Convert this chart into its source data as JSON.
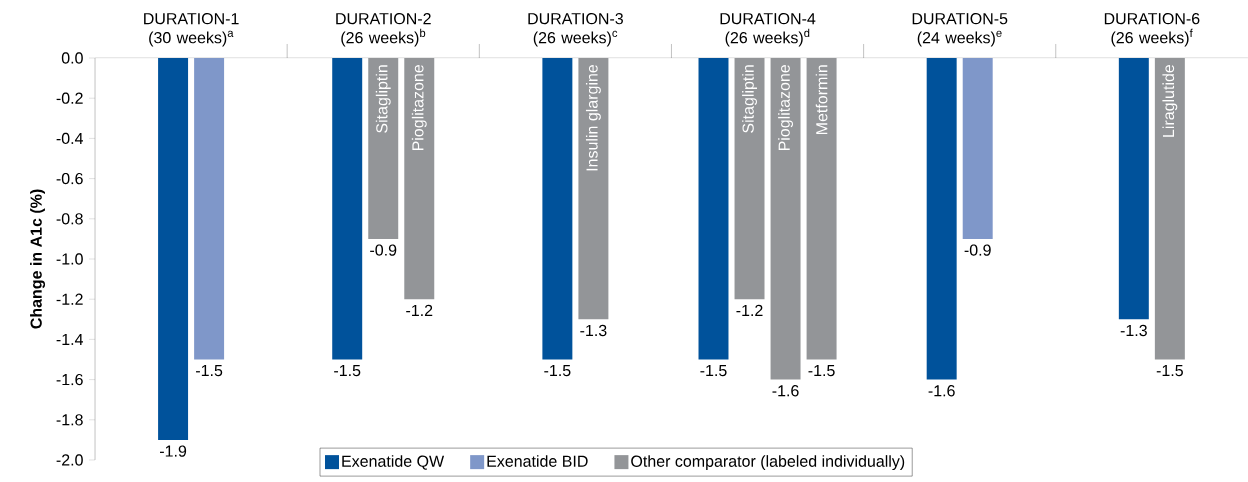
{
  "chart_data": {
    "type": "bar",
    "ylabel": "Change in A1c (%)",
    "categories": [
      "DURATION-1 (30 weeks)$^{a}$",
      "DURATION-2 (26 weeks)$^{b}$",
      "DURATION-3 (26 weeks)$^{c}$",
      "DURATION-4 (26 weeks)$^{d}$",
      "DURATION-5 (24 weeks)$^{e}$",
      "DURATION-6 (26 weeks)$^{f}$"
    ],
    "series": [
      {
        "name": "Exenatide QW",
        "color": "#00529b",
        "values": [
          -1.9,
          -1.5,
          -1.5,
          -1.5,
          -1.6,
          -1.3
        ]
      },
      {
        "name": "Exenatide BID",
        "color": "#7f97c9",
        "values": [
          -1.5,
          null,
          null,
          null,
          -0.9,
          null
        ]
      },
      {
        "name": "Other comparator (labeled individually)",
        "color": "#939598",
        "values": [
          null,
          -0.9,
          -1.3,
          -1.2,
          null,
          -1.5
        ]
      },
      {
        "color": "#939598",
        "values": [
          null,
          -1.2,
          null,
          -1.6,
          null,
          null
        ]
      },
      {
        "color": "#939598",
        "values": [
          null,
          null,
          null,
          -1.5,
          null,
          null
        ]
      }
    ],
    "annotations": [
      "Sitagliptin",
      "Pioglitazone",
      "Insulin glargine",
      "Sitagliptin",
      "Pioglitazone",
      "Metformin",
      "Liraglutide"
    ],
    "ylim": [
      -2,
      0
    ],
    "yticks": [
      {
        "value": -2,
        "label": "-2.0"
      },
      {
        "value": -1.8,
        "label": "-1.8"
      },
      {
        "value": -1.6,
        "label": "-1.6"
      },
      {
        "value": -1.4,
        "label": "-1.4"
      },
      {
        "value": -1.2,
        "label": "-1.2"
      },
      {
        "value": -1,
        "label": "-1.0"
      },
      {
        "value": -0.8,
        "label": "-0.8"
      },
      {
        "value": -0.6,
        "label": "-0.6"
      },
      {
        "value": -0.4,
        "label": "-0.4"
      },
      {
        "value": -0.2,
        "label": "-0.2"
      },
      {
        "value": 0,
        "label": "0.0"
      }
    ],
    "data_labels": true,
    "legend": "bottom"
  }
}
